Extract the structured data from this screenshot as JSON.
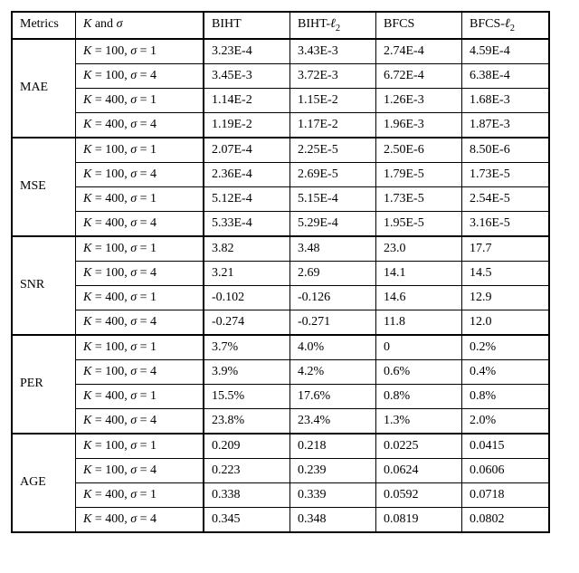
{
  "table": {
    "headers": {
      "metrics": "Metrics",
      "params_prefix": "K",
      "params_mid": " and ",
      "params_sigma": "σ",
      "col1": "BIHT",
      "col2_prefix": "BIHT-",
      "col2_ell": "ℓ",
      "col2_sub": "2",
      "col3": "BFCS",
      "col4_prefix": "BFCS-",
      "col4_ell": "ℓ",
      "col4_sub": "2"
    },
    "param_labels": [
      "K = 100, σ = 1",
      "K = 100, σ = 4",
      "K = 400, σ = 1",
      "K = 400, σ = 4"
    ],
    "groups": [
      {
        "metric": "MAE",
        "rows": [
          [
            "3.23E-4",
            "3.43E-3",
            "2.74E-4",
            "4.59E-4"
          ],
          [
            "3.45E-3",
            "3.72E-3",
            "6.72E-4",
            "6.38E-4"
          ],
          [
            "1.14E-2",
            "1.15E-2",
            "1.26E-3",
            "1.68E-3"
          ],
          [
            "1.19E-2",
            "1.17E-2",
            "1.96E-3",
            "1.87E-3"
          ]
        ]
      },
      {
        "metric": "MSE",
        "rows": [
          [
            "2.07E-4",
            "2.25E-5",
            "2.50E-6",
            "8.50E-6"
          ],
          [
            "2.36E-4",
            "2.69E-5",
            "1.79E-5",
            "1.73E-5"
          ],
          [
            "5.12E-4",
            "5.15E-4",
            "1.73E-5",
            "2.54E-5"
          ],
          [
            "5.33E-4",
            "5.29E-4",
            "1.95E-5",
            "3.16E-5"
          ]
        ]
      },
      {
        "metric": "SNR",
        "rows": [
          [
            "3.82",
            "3.48",
            "23.0",
            "17.7"
          ],
          [
            "3.21",
            "2.69",
            "14.1",
            "14.5"
          ],
          [
            "-0.102",
            "-0.126",
            "14.6",
            "12.9"
          ],
          [
            "-0.274",
            "-0.271",
            "11.8",
            "12.0"
          ]
        ]
      },
      {
        "metric": "PER",
        "rows": [
          [
            "3.7%",
            "4.0%",
            "0",
            "0.2%"
          ],
          [
            "3.9%",
            "4.2%",
            "0.6%",
            "0.4%"
          ],
          [
            "15.5%",
            "17.6%",
            "0.8%",
            "0.8%"
          ],
          [
            "23.8%",
            "23.4%",
            "1.3%",
            "2.0%"
          ]
        ]
      },
      {
        "metric": "AGE",
        "rows": [
          [
            "0.209",
            "0.218",
            "0.0225",
            "0.0415"
          ],
          [
            "0.223",
            "0.239",
            "0.0624",
            "0.0606"
          ],
          [
            "0.338",
            "0.339",
            "0.0592",
            "0.0718"
          ],
          [
            "0.345",
            "0.348",
            "0.0819",
            "0.0802"
          ]
        ]
      }
    ]
  }
}
